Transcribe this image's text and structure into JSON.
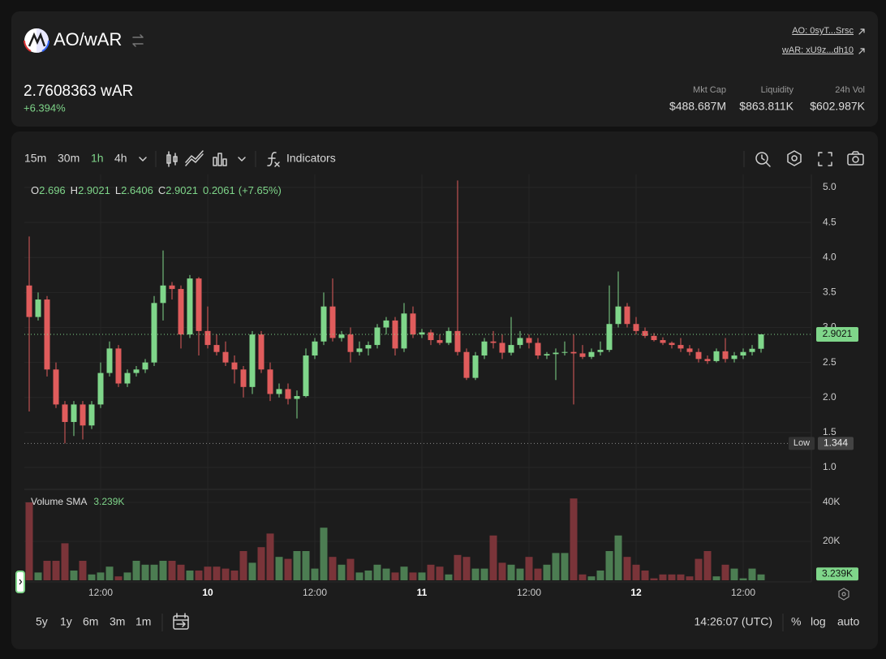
{
  "header": {
    "pair": "AO/wAR",
    "links": [
      "AO: 0syT...Srsc",
      "wAR: xU9z...dh10"
    ],
    "price": "2.7608363 wAR",
    "change": "+6.394%",
    "stats": [
      {
        "label": "Mkt Cap",
        "value": "$488.687M"
      },
      {
        "label": "Liquidity",
        "value": "$863.811K"
      },
      {
        "label": "24h Vol",
        "value": "$602.987K"
      }
    ]
  },
  "toolbar": {
    "intervals": [
      "15m",
      "30m",
      "1h",
      "4h"
    ],
    "active_interval": 2,
    "indicators": "Indicators"
  },
  "footer": {
    "ranges": [
      "5y",
      "1y",
      "6m",
      "3m",
      "1m"
    ],
    "clock": "14:26:07 (UTC)",
    "options": [
      "%",
      "log",
      "auto"
    ]
  },
  "chart_data": {
    "type": "candlestick",
    "categories": [
      null,
      null,
      null,
      null,
      null,
      null,
      null,
      null,
      "12:00",
      null,
      null,
      null,
      null,
      null,
      null,
      null,
      null,
      null,
      null,
      null,
      "10",
      null,
      null,
      null,
      null,
      null,
      null,
      null,
      null,
      null,
      null,
      null,
      "12:00",
      null,
      null,
      null,
      null,
      null,
      null,
      null,
      null,
      null,
      null,
      null,
      "11",
      null,
      null,
      null,
      null,
      null,
      null,
      null,
      null,
      null,
      null,
      null,
      "12:00",
      null,
      null,
      null,
      null,
      null,
      null,
      null,
      null,
      null,
      null,
      null,
      "12",
      null,
      null,
      null,
      null,
      null,
      null,
      null,
      null,
      null,
      null,
      null,
      "12:00",
      null,
      null
    ],
    "open": [
      3.6,
      3.15,
      3.4,
      2.4,
      1.9,
      1.65,
      1.9,
      1.6,
      1.9,
      2.35,
      2.7,
      2.2,
      2.35,
      2.4,
      2.5,
      3.35,
      3.6,
      3.55,
      2.9,
      3.7,
      2.95,
      2.75,
      2.65,
      2.5,
      2.4,
      2.15,
      2.9,
      2.4,
      2.05,
      2.12,
      1.98,
      2.02,
      2.6,
      2.8,
      3.3,
      2.85,
      2.9,
      2.65,
      2.7,
      2.75,
      3.0,
      3.1,
      2.7,
      3.2,
      2.9,
      2.93,
      2.82,
      2.78,
      2.95,
      2.65,
      2.28,
      2.6,
      2.8,
      2.78,
      2.64,
      2.75,
      2.85,
      2.78,
      2.6,
      2.62,
      2.64,
      2.65,
      2.63,
      2.58,
      2.65,
      2.68,
      3.05,
      3.3,
      3.05,
      2.95,
      2.88,
      2.82,
      2.78,
      2.75,
      2.7,
      2.65,
      2.55,
      2.52,
      2.66,
      2.55,
      2.6,
      2.65,
      2.696
    ],
    "high": [
      4.3,
      3.5,
      3.45,
      2.5,
      1.95,
      1.95,
      1.95,
      1.95,
      2.5,
      2.8,
      2.75,
      2.4,
      2.45,
      2.55,
      3.45,
      4.1,
      3.65,
      3.6,
      3.75,
      3.72,
      3.3,
      2.9,
      2.8,
      2.6,
      2.45,
      2.95,
      2.95,
      2.5,
      2.2,
      2.2,
      2.1,
      2.7,
      2.85,
      3.5,
      3.7,
      2.95,
      3.0,
      2.8,
      2.8,
      3.05,
      3.15,
      3.15,
      3.35,
      3.3,
      2.98,
      2.97,
      2.9,
      3.0,
      5.1,
      2.7,
      2.65,
      2.85,
      2.95,
      2.9,
      3.15,
      2.95,
      2.9,
      2.85,
      2.65,
      2.7,
      2.8,
      2.9,
      2.75,
      2.7,
      2.8,
      3.6,
      3.8,
      3.35,
      3.15,
      3.0,
      2.92,
      2.86,
      2.8,
      2.85,
      2.75,
      2.7,
      2.6,
      2.7,
      2.85,
      2.65,
      2.7,
      2.75,
      2.9021
    ],
    "low": [
      1.8,
      3.1,
      2.3,
      1.85,
      1.344,
      1.45,
      1.4,
      1.55,
      1.85,
      2.3,
      2.15,
      2.15,
      2.3,
      2.35,
      2.45,
      3.1,
      3.4,
      2.7,
      2.85,
      2.6,
      2.7,
      2.6,
      2.45,
      2.2,
      2.0,
      2.05,
      2.35,
      1.95,
      2.0,
      1.9,
      1.7,
      2.0,
      2.55,
      2.75,
      2.8,
      2.8,
      2.5,
      2.6,
      2.6,
      2.7,
      2.9,
      2.6,
      2.65,
      2.85,
      2.85,
      2.75,
      2.75,
      2.75,
      2.6,
      2.25,
      2.25,
      2.55,
      2.7,
      2.55,
      2.6,
      2.7,
      2.7,
      2.55,
      2.55,
      2.25,
      2.6,
      1.9,
      2.55,
      2.55,
      2.6,
      2.65,
      3.0,
      3.0,
      2.9,
      2.85,
      2.8,
      2.75,
      2.7,
      2.65,
      2.6,
      2.5,
      2.48,
      2.5,
      2.5,
      2.5,
      2.55,
      2.6,
      2.6406
    ],
    "close": [
      3.15,
      3.4,
      2.4,
      1.9,
      1.65,
      1.9,
      1.6,
      1.9,
      2.35,
      2.7,
      2.2,
      2.35,
      2.4,
      2.5,
      3.35,
      3.6,
      3.55,
      2.9,
      3.7,
      2.95,
      2.75,
      2.65,
      2.5,
      2.4,
      2.15,
      2.9,
      2.4,
      2.05,
      2.12,
      1.98,
      2.02,
      2.6,
      2.8,
      3.3,
      2.85,
      2.9,
      2.65,
      2.7,
      2.75,
      3.0,
      3.1,
      2.7,
      3.2,
      2.9,
      2.93,
      2.82,
      2.78,
      2.95,
      2.65,
      2.28,
      2.6,
      2.8,
      2.78,
      2.64,
      2.75,
      2.85,
      2.78,
      2.6,
      2.62,
      2.64,
      2.65,
      2.63,
      2.58,
      2.65,
      2.68,
      3.05,
      3.3,
      3.05,
      2.95,
      2.88,
      2.82,
      2.78,
      2.75,
      2.7,
      2.65,
      2.55,
      2.52,
      2.66,
      2.55,
      2.6,
      2.65,
      2.696,
      2.9021
    ],
    "volume": [
      40000,
      4000,
      10000,
      10000,
      19000,
      5000,
      10000,
      3000,
      4000,
      7000,
      2000,
      4000,
      10000,
      8000,
      8000,
      10000,
      10000,
      8000,
      5000,
      5000,
      7000,
      7000,
      6000,
      5000,
      15000,
      9000,
      17000,
      24000,
      12000,
      11000,
      15000,
      15000,
      6000,
      27000,
      12000,
      8000,
      11000,
      4000,
      5000,
      8000,
      6000,
      4000,
      7000,
      4000,
      4000,
      8000,
      7000,
      3000,
      13000,
      12000,
      6000,
      6000,
      23000,
      9000,
      8000,
      6000,
      12000,
      6000,
      8000,
      14000,
      14000,
      42000,
      3000,
      2000,
      5000,
      15000,
      23000,
      12000,
      8000,
      5000,
      1000,
      3000,
      3000,
      3000,
      2000,
      11000,
      15000,
      2000,
      8000,
      6000,
      1000,
      6000,
      3000
    ],
    "ylim": [
      0.687,
      5.186
    ],
    "yticks": [
      {
        "value": 1,
        "label": "1.0"
      },
      1.5,
      {
        "value": 2,
        "label": "2.0"
      },
      2.5,
      {
        "value": 3,
        "label": "3.0"
      },
      3.5,
      {
        "value": 4,
        "label": "4.0"
      },
      4.5,
      {
        "value": 5,
        "label": "5.0"
      }
    ],
    "volume_ylim": [
      0,
      46667
    ],
    "volume_ticks": [
      {
        "value": 20000,
        "label": "20K"
      },
      {
        "value": 40000,
        "label": "40K"
      }
    ],
    "legend_keys": [
      "O",
      "H",
      "L",
      "C"
    ],
    "change": 0.2061,
    "change_label": "(+7.65%)",
    "low_label": "Low",
    "low_value": 1.344,
    "volume_sma_title": "Volume SMA",
    "volume_sma": 3239,
    "volume_sma_label": "3.239K",
    "up_color": "#7fd68a",
    "down_color": "#e05c5c",
    "volume_up_color": "#4c7d52",
    "volume_down_color": "#7a3439",
    "grid": true
  }
}
